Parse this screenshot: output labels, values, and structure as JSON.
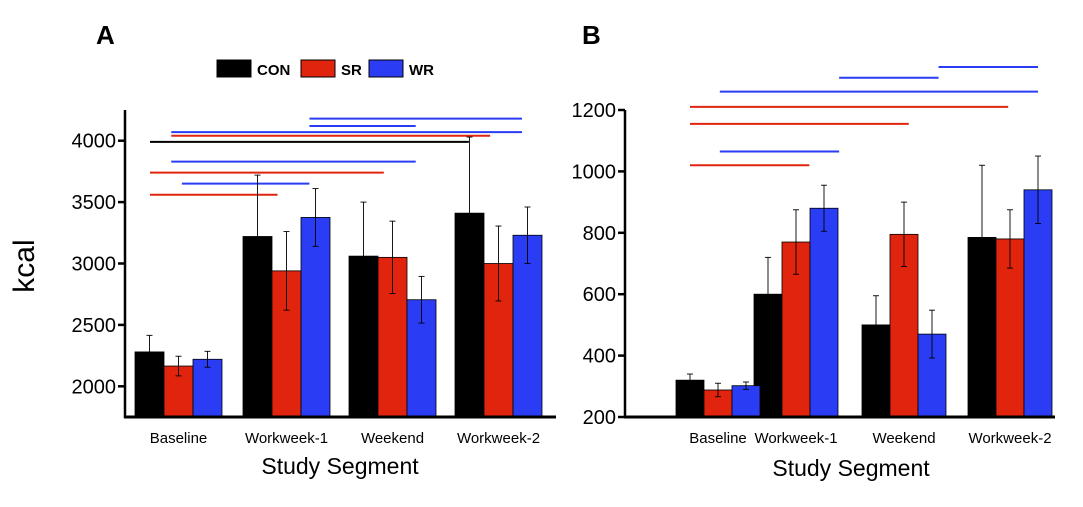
{
  "colors": {
    "CON": "#000000",
    "SR": "#e0240e",
    "WR": "#2a3df5"
  },
  "legend": [
    {
      "key": "CON",
      "label": "CON"
    },
    {
      "key": "SR",
      "label": "SR"
    },
    {
      "key": "WR",
      "label": "WR"
    }
  ],
  "shared_ylabel": "kcal",
  "chart_data": [
    {
      "panel": "A",
      "type": "bar",
      "title": "",
      "xlabel": "Study Segment",
      "ylabel": "kcal",
      "categories": [
        "Baseline",
        "Workweek-1",
        "Weekend",
        "Workweek-2"
      ],
      "ylim": [
        1750,
        4250
      ],
      "yticks": [
        2000,
        2500,
        3000,
        3500,
        4000
      ],
      "series": [
        {
          "name": "CON",
          "values": [
            2280,
            3220,
            3060,
            3410
          ],
          "errors": [
            135,
            500,
            440,
            620
          ]
        },
        {
          "name": "SR",
          "values": [
            2165,
            2940,
            3050,
            3000
          ],
          "errors": [
            80,
            320,
            295,
            305
          ]
        },
        {
          "name": "WR",
          "values": [
            2220,
            3375,
            2705,
            3230
          ],
          "errors": [
            65,
            235,
            190,
            230
          ]
        }
      ],
      "significance_bars": [
        {
          "color": "WR",
          "from": 1.5,
          "to": 3.5,
          "y": 4180
        },
        {
          "color": "WR",
          "from": 1.5,
          "to": 2.5,
          "y": 4120
        },
        {
          "color": "WR",
          "from": 0.2,
          "to": 3.5,
          "y": 4070
        },
        {
          "color": "SR",
          "from": 0.2,
          "to": 3.2,
          "y": 4040
        },
        {
          "color": "CON",
          "from": 0.0,
          "to": 3.0,
          "y": 3990
        },
        {
          "color": "WR",
          "from": 0.2,
          "to": 2.5,
          "y": 3830
        },
        {
          "color": "SR",
          "from": 0.0,
          "to": 2.2,
          "y": 3740
        },
        {
          "color": "WR",
          "from": 0.3,
          "to": 1.5,
          "y": 3650
        },
        {
          "color": "SR",
          "from": 0.0,
          "to": 1.2,
          "y": 3560
        }
      ]
    },
    {
      "panel": "B",
      "type": "bar",
      "title": "",
      "xlabel": "Study Segment",
      "ylabel": "",
      "categories": [
        "Baseline",
        "Workweek-1",
        "Weekend",
        "Workweek-2"
      ],
      "ylim": [
        200,
        1200
      ],
      "yticks": [
        200,
        400,
        600,
        800,
        1000,
        1200
      ],
      "series": [
        {
          "name": "CON",
          "values": [
            320,
            600,
            500,
            785
          ],
          "errors": [
            20,
            120,
            95,
            235
          ]
        },
        {
          "name": "SR",
          "values": [
            288,
            770,
            795,
            780
          ],
          "errors": [
            22,
            105,
            105,
            95
          ]
        },
        {
          "name": "WR",
          "values": [
            302,
            880,
            470,
            940
          ],
          "errors": [
            12,
            75,
            78,
            110
          ]
        }
      ],
      "significance_bars": [
        {
          "color": "WR",
          "from": 2.5,
          "to": 3.5,
          "y": 1340
        },
        {
          "color": "WR",
          "from": 1.5,
          "to": 2.5,
          "y": 1305
        },
        {
          "color": "WR",
          "from": 0.3,
          "to": 3.5,
          "y": 1260
        },
        {
          "color": "SR",
          "from": 0.0,
          "to": 3.2,
          "y": 1210
        },
        {
          "color": "SR",
          "from": 0.0,
          "to": 2.2,
          "y": 1155
        },
        {
          "color": "WR",
          "from": 0.3,
          "to": 1.5,
          "y": 1065
        },
        {
          "color": "SR",
          "from": 0.0,
          "to": 1.2,
          "y": 1020
        }
      ]
    }
  ]
}
